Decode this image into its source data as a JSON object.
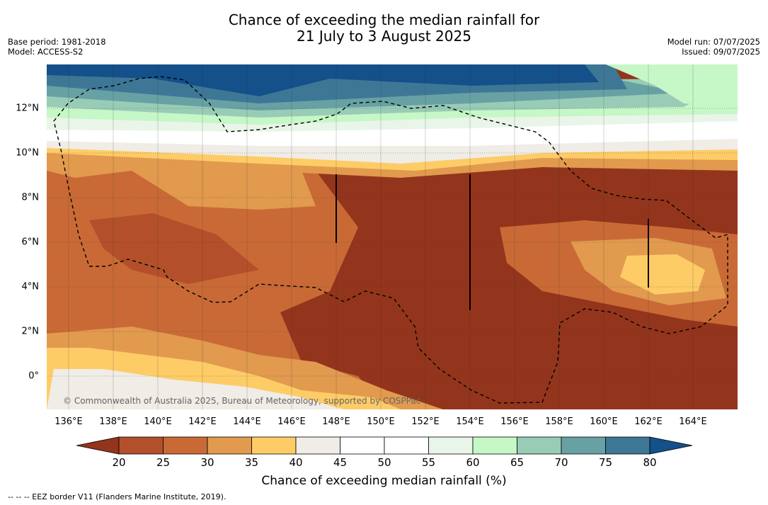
{
  "title": {
    "line1": "Chance of exceeding the median rainfall for",
    "line2": "21 July to 3 August 2025"
  },
  "meta_left": {
    "base_period": "Base period: 1981-2018",
    "model": "Model: ACCESS-S2"
  },
  "meta_right": {
    "model_run": "Model run: 07/07/2025",
    "issued": "Issued: 09/07/2025"
  },
  "map": {
    "lat_labels": [
      "12°N",
      "10°N",
      "8°N",
      "6°N",
      "4°N",
      "2°N",
      "0°"
    ],
    "lon_labels": [
      "136°E",
      "138°E",
      "140°E",
      "142°E",
      "144°E",
      "146°E",
      "148°E",
      "150°E",
      "152°E",
      "154°E",
      "156°E",
      "158°E",
      "160°E",
      "162°E",
      "164°E"
    ],
    "copyright": "© Commonwealth of Australia 2025, Bureau of Meteorology, supported by COSPPac"
  },
  "colorbar": {
    "ticks": [
      "20",
      "25",
      "30",
      "35",
      "40",
      "45",
      "50",
      "55",
      "60",
      "65",
      "70",
      "75",
      "80"
    ],
    "colors": [
      "#93351c",
      "#b3502b",
      "#c96a36",
      "#e19a4e",
      "#fecc67",
      "#f0ece6",
      "#ffffff",
      "#ffffff",
      "#e9f5e9",
      "#c6f7c6",
      "#99ccb6",
      "#67a1a4",
      "#3e7796",
      "#14508a"
    ],
    "title": "Chance of exceeding median rainfall (%)"
  },
  "footer": "--  --  -- EEZ border V11 (Flanders Marine Institute, 2019)."
}
